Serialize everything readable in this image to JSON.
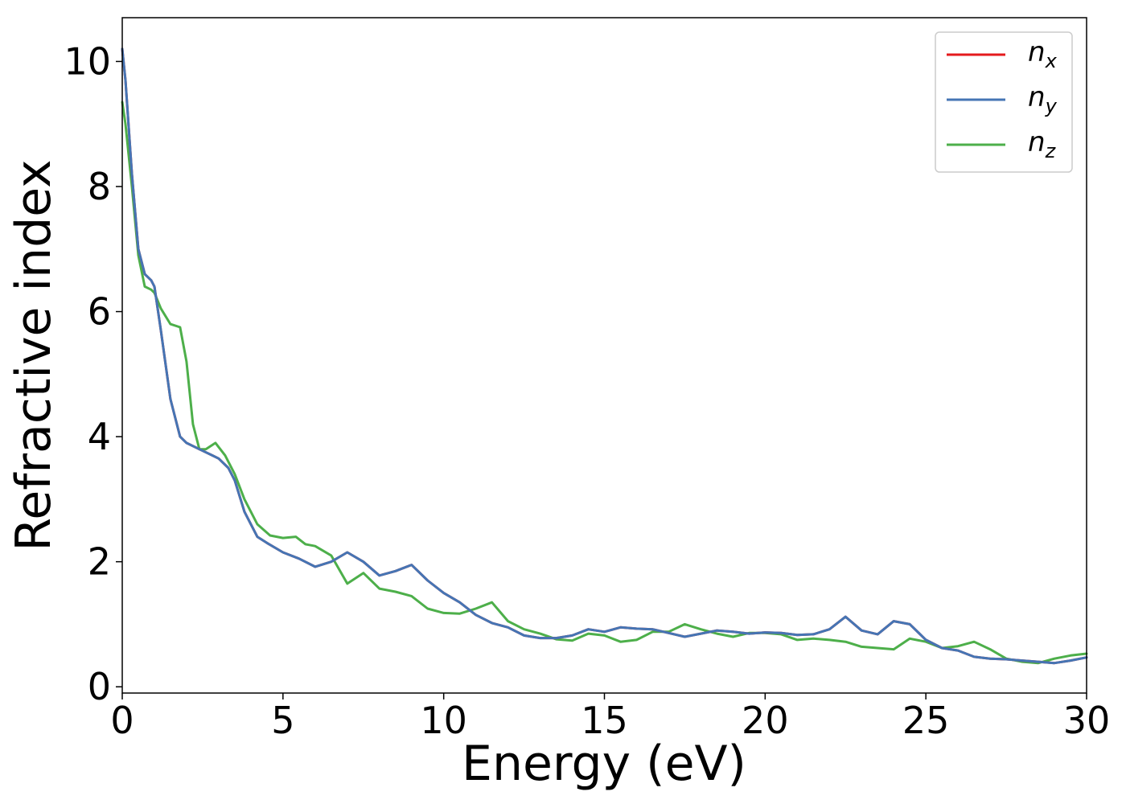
{
  "chart_data": {
    "type": "line",
    "xlabel": "Energy (eV)",
    "ylabel": "Refractive index",
    "xlim": [
      0,
      30
    ],
    "ylim": [
      -0.1,
      10.7
    ],
    "xticks": [
      0,
      5,
      10,
      15,
      20,
      25,
      30
    ],
    "xtick_labels": [
      "0",
      "5",
      "10",
      "15",
      "20",
      "25",
      "30"
    ],
    "yticks": [
      0,
      2,
      4,
      6,
      8,
      10
    ],
    "ytick_labels": [
      "0",
      "2",
      "4",
      "6",
      "8",
      "10"
    ],
    "grid": false,
    "legend_position": "top-right",
    "series": [
      {
        "name": "n_x",
        "legend_base": "n",
        "legend_sub": "x",
        "color": "#e41a1c",
        "x": [
          0,
          0.1,
          0.3,
          0.5,
          0.7,
          0.9,
          1.0,
          1.2,
          1.5,
          1.8,
          2.0,
          2.4,
          2.8,
          3.0,
          3.3,
          3.5,
          3.8,
          4.2,
          4.5,
          5.0,
          5.5,
          6.0,
          6.5,
          7.0,
          7.5,
          8.0,
          8.5,
          9.0,
          9.5,
          10.0,
          10.5,
          11.0,
          11.5,
          12.0,
          12.5,
          13.0,
          13.5,
          14.0,
          14.5,
          15.0,
          15.5,
          16.0,
          16.5,
          17.0,
          17.5,
          18.0,
          18.5,
          19.0,
          19.5,
          20.0,
          20.5,
          21.0,
          21.5,
          22.0,
          22.5,
          23.0,
          23.5,
          24.0,
          24.5,
          25.0,
          25.5,
          26.0,
          26.5,
          27.0,
          27.5,
          28.0,
          28.5,
          29.0,
          29.5,
          30.0
        ],
        "values": [
          10.2,
          9.7,
          8.2,
          7.0,
          6.6,
          6.5,
          6.4,
          5.7,
          4.6,
          4.0,
          3.9,
          3.8,
          3.7,
          3.65,
          3.5,
          3.3,
          2.8,
          2.4,
          2.3,
          2.15,
          2.05,
          1.92,
          2.0,
          2.15,
          2.0,
          1.78,
          1.85,
          1.95,
          1.7,
          1.5,
          1.35,
          1.15,
          1.02,
          0.95,
          0.82,
          0.78,
          0.78,
          0.82,
          0.92,
          0.88,
          0.95,
          0.93,
          0.92,
          0.86,
          0.8,
          0.85,
          0.9,
          0.88,
          0.85,
          0.87,
          0.86,
          0.83,
          0.84,
          0.92,
          1.12,
          0.9,
          0.84,
          1.05,
          1.0,
          0.75,
          0.62,
          0.58,
          0.48,
          0.45,
          0.44,
          0.42,
          0.4,
          0.38,
          0.42,
          0.47
        ]
      },
      {
        "name": "n_y",
        "legend_base": "n",
        "legend_sub": "y",
        "color": "#4575b4",
        "x": [
          0,
          0.1,
          0.3,
          0.5,
          0.7,
          0.9,
          1.0,
          1.2,
          1.5,
          1.8,
          2.0,
          2.4,
          2.8,
          3.0,
          3.3,
          3.5,
          3.8,
          4.2,
          4.5,
          5.0,
          5.5,
          6.0,
          6.5,
          7.0,
          7.5,
          8.0,
          8.5,
          9.0,
          9.5,
          10.0,
          10.5,
          11.0,
          11.5,
          12.0,
          12.5,
          13.0,
          13.5,
          14.0,
          14.5,
          15.0,
          15.5,
          16.0,
          16.5,
          17.0,
          17.5,
          18.0,
          18.5,
          19.0,
          19.5,
          20.0,
          20.5,
          21.0,
          21.5,
          22.0,
          22.5,
          23.0,
          23.5,
          24.0,
          24.5,
          25.0,
          25.5,
          26.0,
          26.5,
          27.0,
          27.5,
          28.0,
          28.5,
          29.0,
          29.5,
          30.0
        ],
        "values": [
          10.2,
          9.7,
          8.2,
          7.0,
          6.6,
          6.5,
          6.4,
          5.7,
          4.6,
          4.0,
          3.9,
          3.8,
          3.7,
          3.65,
          3.5,
          3.3,
          2.8,
          2.4,
          2.3,
          2.15,
          2.05,
          1.92,
          2.0,
          2.15,
          2.0,
          1.78,
          1.85,
          1.95,
          1.7,
          1.5,
          1.35,
          1.15,
          1.02,
          0.95,
          0.82,
          0.78,
          0.78,
          0.82,
          0.92,
          0.88,
          0.95,
          0.93,
          0.92,
          0.86,
          0.8,
          0.85,
          0.9,
          0.88,
          0.85,
          0.87,
          0.86,
          0.83,
          0.84,
          0.92,
          1.12,
          0.9,
          0.84,
          1.05,
          1.0,
          0.75,
          0.62,
          0.58,
          0.48,
          0.45,
          0.44,
          0.42,
          0.4,
          0.38,
          0.42,
          0.47
        ]
      },
      {
        "name": "n_z",
        "legend_base": "n",
        "legend_sub": "z",
        "color": "#4daf4a",
        "x": [
          0,
          0.1,
          0.3,
          0.5,
          0.7,
          0.9,
          1.0,
          1.2,
          1.5,
          1.8,
          2.0,
          2.2,
          2.4,
          2.6,
          2.9,
          3.2,
          3.5,
          3.8,
          4.2,
          4.6,
          5.0,
          5.4,
          5.7,
          6.0,
          6.5,
          7.0,
          7.5,
          8.0,
          8.5,
          9.0,
          9.5,
          10.0,
          10.5,
          11.0,
          11.5,
          12.0,
          12.5,
          13.0,
          13.5,
          14.0,
          14.5,
          15.0,
          15.5,
          16.0,
          16.5,
          17.0,
          17.5,
          18.0,
          18.5,
          19.0,
          19.5,
          20.0,
          20.5,
          21.0,
          21.5,
          22.0,
          22.5,
          23.0,
          23.5,
          24.0,
          24.5,
          25.0,
          25.5,
          26.0,
          26.5,
          27.0,
          27.5,
          28.0,
          28.5,
          29.0,
          29.5,
          30.0
        ],
        "values": [
          9.35,
          9.0,
          8.0,
          6.9,
          6.4,
          6.35,
          6.3,
          6.05,
          5.8,
          5.75,
          5.2,
          4.2,
          3.8,
          3.8,
          3.9,
          3.7,
          3.4,
          3.0,
          2.6,
          2.42,
          2.38,
          2.4,
          2.28,
          2.25,
          2.1,
          1.65,
          1.82,
          1.57,
          1.52,
          1.45,
          1.25,
          1.18,
          1.17,
          1.25,
          1.35,
          1.05,
          0.92,
          0.85,
          0.76,
          0.74,
          0.85,
          0.82,
          0.72,
          0.75,
          0.88,
          0.88,
          1.0,
          0.92,
          0.85,
          0.8,
          0.86,
          0.86,
          0.84,
          0.75,
          0.77,
          0.75,
          0.72,
          0.64,
          0.62,
          0.6,
          0.77,
          0.72,
          0.62,
          0.65,
          0.72,
          0.6,
          0.45,
          0.4,
          0.38,
          0.45,
          0.5,
          0.53
        ]
      }
    ]
  }
}
